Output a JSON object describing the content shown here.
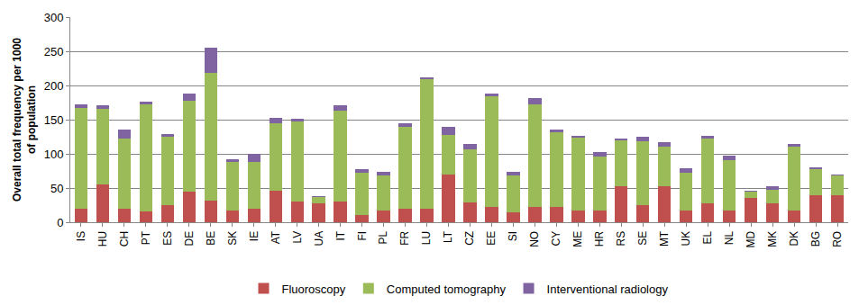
{
  "chart_data": {
    "type": "bar",
    "stacked": true,
    "y_label": [
      "Overall total frequency per 1000",
      "of population"
    ],
    "categories": [
      "IS",
      "HU",
      "CH",
      "PT",
      "ES",
      "DE",
      "BE",
      "SK",
      "IE",
      "AT",
      "LV",
      "UA",
      "IT",
      "FI",
      "PL",
      "FR",
      "LU",
      "LT",
      "CZ",
      "EE",
      "SI",
      "NO",
      "CY",
      "ME",
      "HR",
      "RS",
      "SE",
      "MT",
      "UK",
      "EL",
      "NL",
      "MD",
      "MK",
      "DK",
      "BG",
      "RO"
    ],
    "series": [
      {
        "name": "Fluoroscopy",
        "color": "#C0504D",
        "values": [
          20,
          55,
          20,
          16,
          25,
          45,
          32,
          17,
          20,
          46,
          30,
          27,
          30,
          10,
          17,
          20,
          20,
          70,
          29,
          23,
          14,
          22,
          22,
          17,
          17,
          53,
          25,
          52,
          17,
          27,
          17,
          35,
          27,
          17,
          40,
          40
        ]
      },
      {
        "name": "Computed tomography",
        "color": "#9BBB59",
        "values": [
          147,
          111,
          102,
          157,
          100,
          133,
          187,
          71,
          68,
          99,
          117,
          10,
          133,
          62,
          51,
          119,
          189,
          58,
          78,
          161,
          54,
          150,
          109,
          107,
          79,
          67,
          93,
          58,
          56,
          95,
          74,
          10,
          20,
          93,
          37,
          28
        ]
      },
      {
        "name": "Interventional radiology",
        "color": "#8064A2",
        "values": [
          5,
          5,
          13,
          3,
          4,
          10,
          36,
          4,
          12,
          7,
          4,
          1,
          8,
          6,
          6,
          6,
          3,
          12,
          7,
          4,
          6,
          9,
          5,
          2,
          6,
          2,
          7,
          7,
          6,
          4,
          7,
          1,
          6,
          5,
          3,
          2
        ]
      }
    ],
    "ylim": [
      0,
      300
    ],
    "yticks": [
      0,
      50,
      100,
      150,
      200,
      250,
      300
    ],
    "grid": true,
    "legend": "bottom"
  }
}
